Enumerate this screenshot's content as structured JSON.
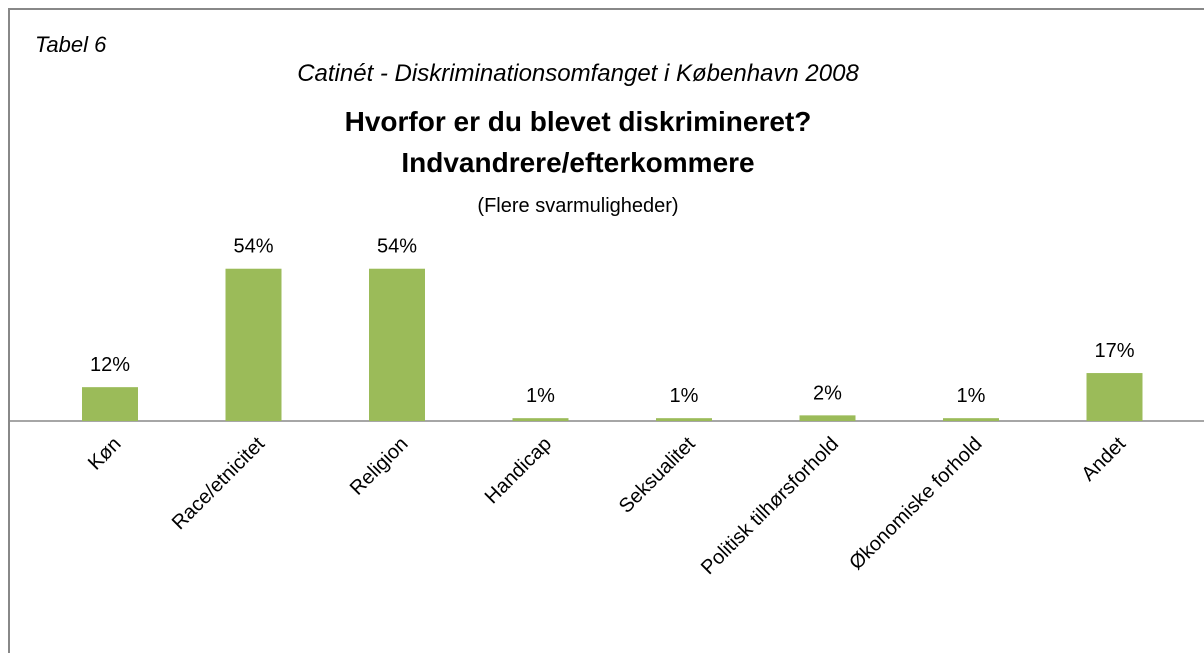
{
  "chart_data": {
    "type": "bar",
    "label": "Tabel 6",
    "subtitle": "Catinét - Diskriminationsomfanget i København 2008",
    "title": [
      "Hvorfor er du blevet diskrimineret?",
      "Indvandrere/efterkommere"
    ],
    "note": "(Flere svarmuligheder)",
    "categories": [
      "Køn",
      "Race/etnicitet",
      "Religion",
      "Handicap",
      "Seksualitet",
      "Politisk tilhørsforhold",
      "Økonomiske forhold",
      "Andet"
    ],
    "values": [
      12,
      54,
      54,
      1,
      1,
      2,
      1,
      17
    ],
    "value_labels": [
      "12%",
      "54%",
      "54%",
      "1%",
      "1%",
      "2%",
      "1%",
      "17%"
    ],
    "color": "#9bbb59"
  }
}
